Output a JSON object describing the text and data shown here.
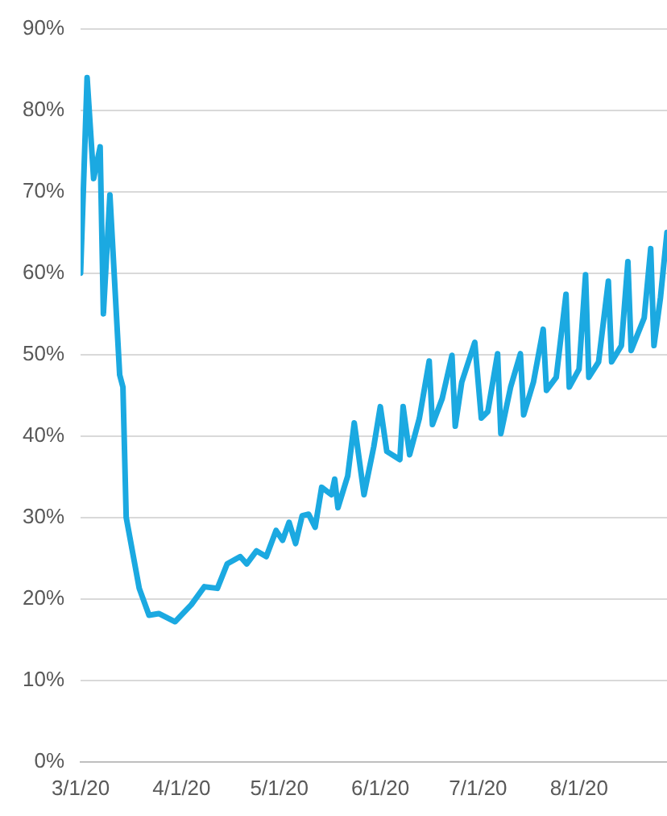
{
  "chart_data": {
    "type": "line",
    "x": [
      "2020-03-01",
      "2020-03-03",
      "2020-03-05",
      "2020-03-07",
      "2020-03-08",
      "2020-03-10",
      "2020-03-13",
      "2020-03-14",
      "2020-03-15",
      "2020-03-19",
      "2020-03-22",
      "2020-03-25",
      "2020-03-30",
      "2020-04-04",
      "2020-04-08",
      "2020-04-12",
      "2020-04-15",
      "2020-04-19",
      "2020-04-21",
      "2020-04-24",
      "2020-04-27",
      "2020-04-30",
      "2020-05-02",
      "2020-05-04",
      "2020-05-06",
      "2020-05-08",
      "2020-05-10",
      "2020-05-12",
      "2020-05-14",
      "2020-05-17",
      "2020-05-18",
      "2020-05-19",
      "2020-05-22",
      "2020-05-24",
      "2020-05-27",
      "2020-05-30",
      "2020-06-01",
      "2020-06-03",
      "2020-06-07",
      "2020-06-08",
      "2020-06-10",
      "2020-06-13",
      "2020-06-16",
      "2020-06-17",
      "2020-06-20",
      "2020-06-23",
      "2020-06-24",
      "2020-06-26",
      "2020-06-30",
      "2020-07-02",
      "2020-07-04",
      "2020-07-07",
      "2020-07-08",
      "2020-07-11",
      "2020-07-14",
      "2020-07-15",
      "2020-07-18",
      "2020-07-21",
      "2020-07-22",
      "2020-07-25",
      "2020-07-28",
      "2020-07-29",
      "2020-08-01",
      "2020-08-03",
      "2020-08-04",
      "2020-08-07",
      "2020-08-10",
      "2020-08-11",
      "2020-08-14",
      "2020-08-16",
      "2020-08-17",
      "2020-08-21",
      "2020-08-23",
      "2020-08-24",
      "2020-08-26",
      "2020-08-28"
    ],
    "series": [
      {
        "color": "#1ba9e1",
        "values": [
          60,
          84,
          71.6,
          75.5,
          55,
          69.6,
          47.5,
          46,
          30,
          21.3,
          18,
          18.2,
          17.2,
          19.3,
          21.5,
          21.3,
          24.3,
          25.2,
          24.3,
          25.9,
          25.2,
          28.4,
          27.2,
          29.4,
          26.8,
          30.2,
          30.4,
          28.8,
          33.7,
          32.8,
          34.7,
          31.2,
          35.1,
          41.6,
          32.8,
          38.7,
          43.6,
          38.1,
          37.1,
          43.6,
          37.7,
          42.2,
          49.2,
          41.4,
          44.6,
          49.9,
          41.2,
          46.6,
          51.5,
          42.2,
          43,
          50.1,
          40.3,
          46,
          50.1,
          42.6,
          46.6,
          53.1,
          45.6,
          47.2,
          57.4,
          46,
          48.2,
          59.8,
          47.2,
          49.1,
          59,
          49.1,
          51.1,
          61.4,
          50.5,
          54.5,
          63,
          51.1,
          57,
          65
        ]
      }
    ],
    "xlim": [
      "2020-03-01",
      "2020-08-28"
    ],
    "xticks": [
      {
        "value": "2020-03-01",
        "label": "3/1/20"
      },
      {
        "value": "2020-04-01",
        "label": "4/1/20"
      },
      {
        "value": "2020-05-01",
        "label": "5/1/20"
      },
      {
        "value": "2020-06-01",
        "label": "6/1/20"
      },
      {
        "value": "2020-07-01",
        "label": "7/1/20"
      },
      {
        "value": "2020-08-01",
        "label": "8/1/20"
      }
    ],
    "ylim": [
      0,
      90
    ],
    "yticks": [
      {
        "value": 0,
        "label": "0%"
      },
      {
        "value": 10,
        "label": "10%"
      },
      {
        "value": 20,
        "label": "20%"
      },
      {
        "value": 30,
        "label": "30%"
      },
      {
        "value": 40,
        "label": "40%"
      },
      {
        "value": 50,
        "label": "50%"
      },
      {
        "value": 60,
        "label": "60%"
      },
      {
        "value": 70,
        "label": "70%"
      },
      {
        "value": 80,
        "label": "80%"
      },
      {
        "value": 90,
        "label": "90%"
      }
    ],
    "grid": "y",
    "legend": false,
    "marker": "none",
    "line_style": "solid"
  }
}
